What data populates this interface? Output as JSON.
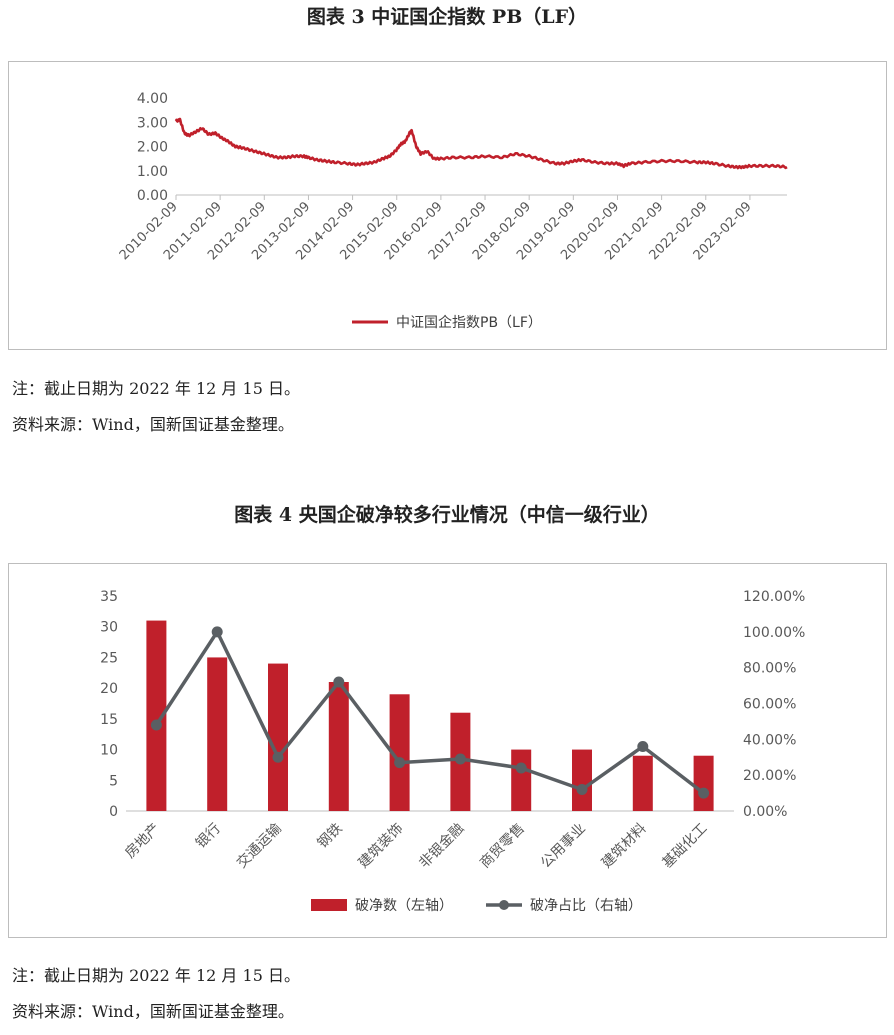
{
  "chart_data": [
    {
      "type": "line",
      "title": "图表 3  中证国企指数 PB（LF）",
      "y_ticks": [
        "0.00",
        "1.00",
        "2.00",
        "3.00",
        "4.00"
      ],
      "ylim": [
        0,
        4
      ],
      "x_ticks": [
        "2010-02-09",
        "2011-02-09",
        "2012-02-09",
        "2013-02-09",
        "2014-02-09",
        "2015-02-09",
        "2016-02-09",
        "2017-02-09",
        "2018-02-09",
        "2019-02-09",
        "2020-02-09",
        "2021-02-09",
        "2022-02-09",
        "2023-02-09"
      ],
      "xlim": [
        2010.11,
        2023.95
      ],
      "series": [
        {
          "name": "中证国企指数PB（LF）",
          "color": "#c0202b",
          "x": [
            2010.11,
            2010.2,
            2010.3,
            2010.4,
            2010.55,
            2010.7,
            2010.85,
            2011.0,
            2011.15,
            2011.3,
            2011.45,
            2011.6,
            2011.8,
            2012.0,
            2012.2,
            2012.4,
            2012.6,
            2012.8,
            2013.0,
            2013.1,
            2013.3,
            2013.5,
            2013.7,
            2014.0,
            2014.2,
            2014.4,
            2014.6,
            2014.8,
            2014.95,
            2015.1,
            2015.2,
            2015.3,
            2015.4,
            2015.45,
            2015.55,
            2015.65,
            2015.8,
            2015.95,
            2016.11,
            2016.4,
            2016.8,
            2017.11,
            2017.5,
            2017.8,
            2018.11,
            2018.4,
            2018.7,
            2018.9,
            2019.11,
            2019.3,
            2019.6,
            2019.9,
            2020.11,
            2020.25,
            2020.4,
            2020.7,
            2021.11,
            2021.5,
            2021.9,
            2022.11,
            2022.3,
            2022.6,
            2022.8,
            2022.95,
            2023.11,
            2023.4,
            2023.7,
            2023.95
          ],
          "values": [
            3.05,
            3.1,
            2.55,
            2.45,
            2.6,
            2.75,
            2.5,
            2.55,
            2.35,
            2.2,
            2.0,
            1.95,
            1.85,
            1.75,
            1.65,
            1.55,
            1.55,
            1.6,
            1.6,
            1.55,
            1.45,
            1.4,
            1.35,
            1.3,
            1.25,
            1.3,
            1.35,
            1.5,
            1.6,
            1.85,
            2.1,
            2.2,
            2.55,
            2.65,
            2.0,
            1.7,
            1.8,
            1.5,
            1.5,
            1.55,
            1.55,
            1.6,
            1.55,
            1.7,
            1.6,
            1.45,
            1.3,
            1.3,
            1.4,
            1.45,
            1.35,
            1.3,
            1.3,
            1.2,
            1.3,
            1.35,
            1.4,
            1.4,
            1.35,
            1.35,
            1.3,
            1.2,
            1.15,
            1.15,
            1.2,
            1.2,
            1.2,
            1.15
          ]
        }
      ],
      "legend_position": "bottom"
    },
    {
      "type": "bar",
      "title": "图表 4  央国企破净较多行业情况（中信一级行业）",
      "categories": [
        "房地产",
        "银行",
        "交通运输",
        "钢铁",
        "建筑装饰",
        "非银金融",
        "商贸零售",
        "公用事业",
        "建筑材料",
        "基础化工"
      ],
      "left_ticks": [
        "0",
        "5",
        "10",
        "15",
        "20",
        "25",
        "30",
        "35"
      ],
      "left_ylim": [
        0,
        35
      ],
      "right_ticks": [
        "0.00%",
        "20.00%",
        "40.00%",
        "60.00%",
        "80.00%",
        "100.00%",
        "120.00%"
      ],
      "right_ylim": [
        0,
        120
      ],
      "series": [
        {
          "name": "破净数（左轴）",
          "type": "bar",
          "axis": "left",
          "color": "#c0202b",
          "values": [
            31,
            25,
            24,
            21,
            19,
            16,
            10,
            10,
            9,
            9
          ]
        },
        {
          "name": "破净占比（右轴）",
          "type": "line",
          "axis": "right",
          "color": "#5a5f63",
          "values": [
            48,
            100,
            30,
            72,
            27,
            29,
            24,
            12,
            36,
            10
          ]
        }
      ],
      "legend_position": "bottom"
    }
  ],
  "notes": {
    "note1": "注：截止日期为 2022 年 12 月 15 日。",
    "source1": "资料来源：Wind，国新国证基金整理。",
    "note2": "注：截止日期为 2022 年 12 月 15 日。",
    "source2": "资料来源：Wind，国新国证基金整理。"
  }
}
